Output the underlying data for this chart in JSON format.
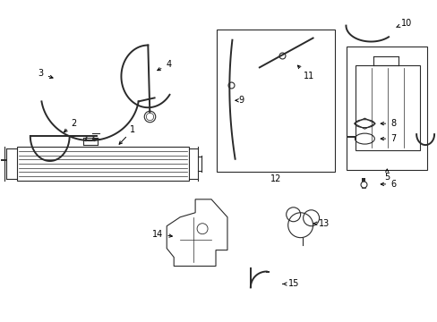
{
  "bg_color": "#ffffff",
  "line_color": "#2a2a2a",
  "label_color": "#000000"
}
